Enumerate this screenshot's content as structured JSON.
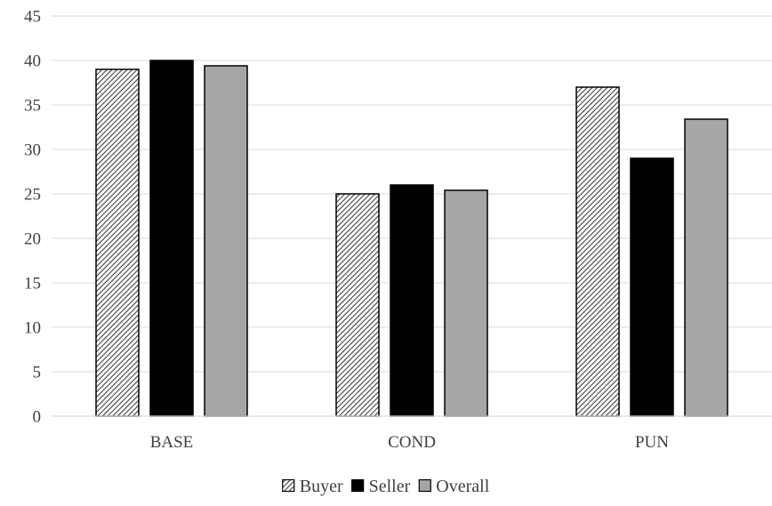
{
  "chart_data": {
    "type": "bar",
    "categories": [
      "BASE",
      "COND",
      "PUN"
    ],
    "series": [
      {
        "name": "Buyer",
        "values": [
          39,
          25,
          37
        ],
        "color": "#ffffff",
        "pattern": "diagonal-hatch"
      },
      {
        "name": "Seller",
        "values": [
          40,
          26,
          29
        ],
        "color": "#000000"
      },
      {
        "name": "Overall",
        "values": [
          39.4,
          25.4,
          33.4
        ],
        "color": "#a6a6a6"
      }
    ],
    "title": "",
    "xlabel": "",
    "ylabel": "",
    "ylim": [
      0,
      45
    ],
    "yticks": [
      0,
      5,
      10,
      15,
      20,
      25,
      30,
      35,
      40,
      45
    ],
    "grid": true,
    "legend": "bottom-center"
  }
}
